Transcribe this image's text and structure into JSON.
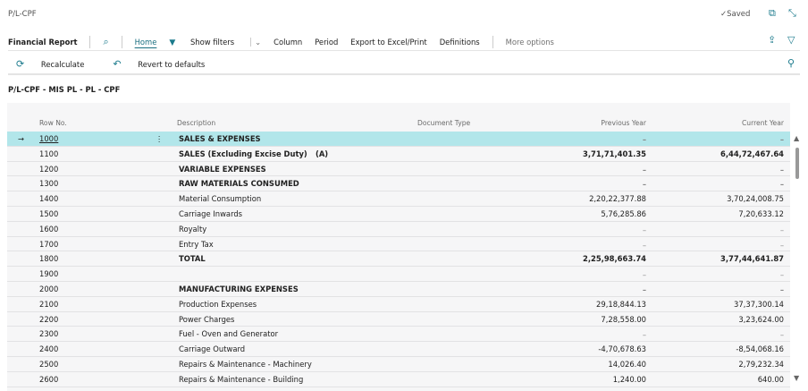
{
  "window": {
    "title": "P/L-CPF",
    "saved": "Saved"
  },
  "actions": {
    "page_name": "Financial Report",
    "home": "Home",
    "show_filters": "Show filters",
    "column": "Column",
    "period": "Period",
    "export": "Export to Excel/Print",
    "definitions": "Definitions",
    "more": "More options"
  },
  "subactions": {
    "recalculate": "Recalculate",
    "revert": "Revert to defaults"
  },
  "report_title": "P/L-CPF - MIS PL - PL - CPF",
  "table": {
    "headers": {
      "row_no": "Row No.",
      "description": "Description",
      "document_type": "Document Type",
      "previous_year": "Previous Year",
      "current_year": "Current Year"
    },
    "rows": [
      {
        "row_no": "1000",
        "description": "SALES & EXPENSES",
        "extra": "",
        "bold": true,
        "prev": "–",
        "curr": "–",
        "selected": true
      },
      {
        "row_no": "1100",
        "description": "SALES (Excluding Excise Duty)",
        "extra": "(A)",
        "bold": true,
        "prev": "3,71,71,401.35",
        "curr": "6,44,72,467.64"
      },
      {
        "row_no": "1200",
        "description": "VARIABLE EXPENSES",
        "extra": "",
        "bold": true,
        "prev": "–",
        "curr": "–"
      },
      {
        "row_no": "1300",
        "description": "RAW MATERIALS CONSUMED",
        "extra": "",
        "bold": true,
        "prev": "–",
        "curr": "–"
      },
      {
        "row_no": "1400",
        "description": "Material Consumption",
        "extra": "",
        "bold": false,
        "prev": "2,20,22,377.88",
        "curr": "3,70,24,008.75"
      },
      {
        "row_no": "1500",
        "description": "Carriage Inwards",
        "extra": "",
        "bold": false,
        "prev": "5,76,285.86",
        "curr": "7,20,633.12"
      },
      {
        "row_no": "1600",
        "description": "Royalty",
        "extra": "",
        "bold": false,
        "prev": "–",
        "curr": "–"
      },
      {
        "row_no": "1700",
        "description": "Entry Tax",
        "extra": "",
        "bold": false,
        "prev": "–",
        "curr": "–"
      },
      {
        "row_no": "1800",
        "description": "TOTAL",
        "extra": "",
        "bold": true,
        "prev": "2,25,98,663.74",
        "curr": "3,77,44,641.87"
      },
      {
        "row_no": "1900",
        "description": "",
        "extra": "",
        "bold": false,
        "prev": "–",
        "curr": "–"
      },
      {
        "row_no": "2000",
        "description": "MANUFACTURING EXPENSES",
        "extra": "",
        "bold": true,
        "prev": "–",
        "curr": "–"
      },
      {
        "row_no": "2100",
        "description": "Production Expenses",
        "extra": "",
        "bold": false,
        "prev": "29,18,844.13",
        "curr": "37,37,300.14"
      },
      {
        "row_no": "2200",
        "description": "Power Charges",
        "extra": "",
        "bold": false,
        "prev": "7,28,558.00",
        "curr": "3,23,624.00"
      },
      {
        "row_no": "2300",
        "description": "Fuel - Oven and Generator",
        "extra": "",
        "bold": false,
        "prev": "–",
        "curr": "–"
      },
      {
        "row_no": "2400",
        "description": "Carriage Outward",
        "extra": "",
        "bold": false,
        "prev": "-4,70,678.63",
        "curr": "-8,54,068.16"
      },
      {
        "row_no": "2500",
        "description": "Repairs & Maintenance - Machinery",
        "extra": "",
        "bold": false,
        "prev": "14,026.40",
        "curr": "2,79,232.34"
      },
      {
        "row_no": "2600",
        "description": "Repairs & Maintenance - Building",
        "extra": "",
        "bold": false,
        "prev": "1,240.00",
        "curr": "640.00"
      }
    ]
  },
  "colors": {
    "accent": "#1b7a8c",
    "selected_row": "#b2e6ea"
  }
}
